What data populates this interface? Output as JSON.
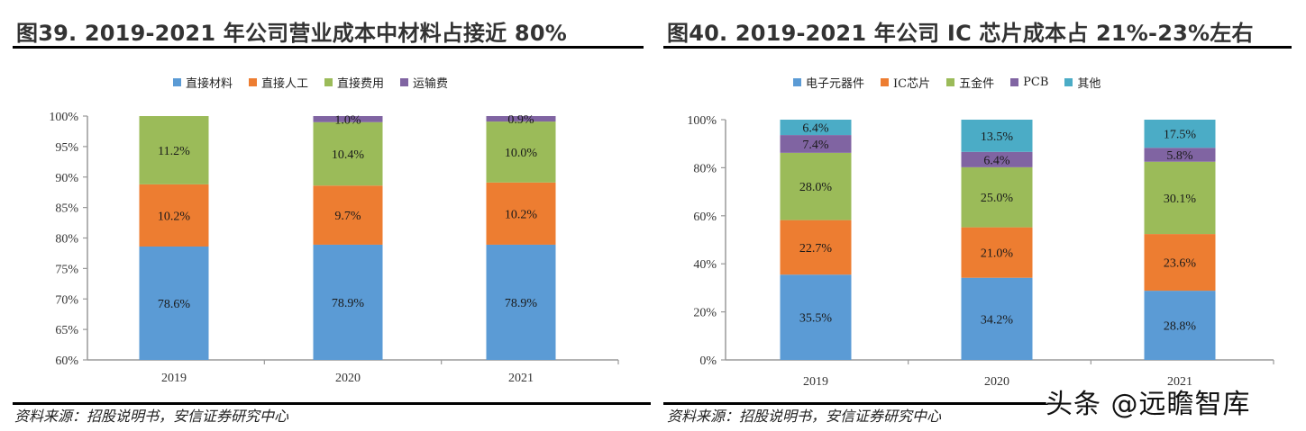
{
  "colors": {
    "blue": "#5B9BD5",
    "orange": "#ED7D31",
    "green": "#9BBB59",
    "purple": "#8064A2",
    "teal": "#4BACC6",
    "axis": "#9a9a9a"
  },
  "watermark": "头条 @远瞻智库",
  "chart_data": [
    {
      "type": "bar",
      "stacked": true,
      "title": "图39. 2019-2021 年公司营业成本中材料占接近 80%",
      "xlabel": "",
      "ylabel": "",
      "categories": [
        "2019",
        "2020",
        "2021"
      ],
      "ylim": [
        60,
        100
      ],
      "yticks": [
        60,
        65,
        70,
        75,
        80,
        85,
        90,
        95,
        100
      ],
      "ytick_labels": [
        "60%",
        "65%",
        "70%",
        "75%",
        "80%",
        "85%",
        "90%",
        "95%",
        "100%"
      ],
      "legend_position": "top-center",
      "grid": false,
      "series": [
        {
          "name": "直接材料",
          "color": "#5B9BD5",
          "values": [
            78.6,
            78.9,
            78.9
          ],
          "labels": [
            "78.6%",
            "78.9%",
            "78.9%"
          ]
        },
        {
          "name": "直接人工",
          "color": "#ED7D31",
          "values": [
            10.2,
            9.7,
            10.2
          ],
          "labels": [
            "10.2%",
            "9.7%",
            "10.2%"
          ]
        },
        {
          "name": "直接费用",
          "color": "#9BBB59",
          "values": [
            11.2,
            10.4,
            10.0
          ],
          "labels": [
            "11.2%",
            "10.4%",
            "10.0%"
          ]
        },
        {
          "name": "运输费",
          "color": "#8064A2",
          "values": [
            0,
            1.0,
            0.9
          ],
          "labels": [
            "",
            "1.0%",
            "0.9%"
          ]
        }
      ],
      "source": "资料来源：招股说明书，安信证券研究中心"
    },
    {
      "type": "bar",
      "stacked": true,
      "title": "图40. 2019-2021 年公司 IC 芯片成本占 21%-23%左右",
      "xlabel": "",
      "ylabel": "",
      "categories": [
        "2019",
        "2020",
        "2021"
      ],
      "ylim": [
        0,
        100
      ],
      "yticks": [
        0,
        20,
        40,
        60,
        80,
        100
      ],
      "ytick_labels": [
        "0%",
        "20%",
        "40%",
        "60%",
        "80%",
        "100%"
      ],
      "legend_position": "top-center",
      "grid": false,
      "series": [
        {
          "name": "电子元器件",
          "color": "#5B9BD5",
          "values": [
            35.5,
            34.2,
            28.8
          ],
          "labels": [
            "35.5%",
            "34.2%",
            "28.8%"
          ]
        },
        {
          "name": "IC芯片",
          "color": "#ED7D31",
          "values": [
            22.7,
            21.0,
            23.6
          ],
          "labels": [
            "22.7%",
            "21.0%",
            "23.6%"
          ]
        },
        {
          "name": "五金件",
          "color": "#9BBB59",
          "values": [
            28.0,
            25.0,
            30.1
          ],
          "labels": [
            "28.0%",
            "25.0%",
            "30.1%"
          ]
        },
        {
          "name": "PCB",
          "color": "#8064A2",
          "values": [
            7.4,
            6.4,
            5.8
          ],
          "labels": [
            "7.4%",
            "6.4%",
            "5.8%"
          ]
        },
        {
          "name": "其他",
          "color": "#4BACC6",
          "values": [
            6.4,
            13.5,
            17.5
          ],
          "labels": [
            "6.4%",
            "13.5%",
            "17.5%"
          ]
        }
      ],
      "source": "资料来源：招股说明书，安信证券研究中心"
    }
  ]
}
